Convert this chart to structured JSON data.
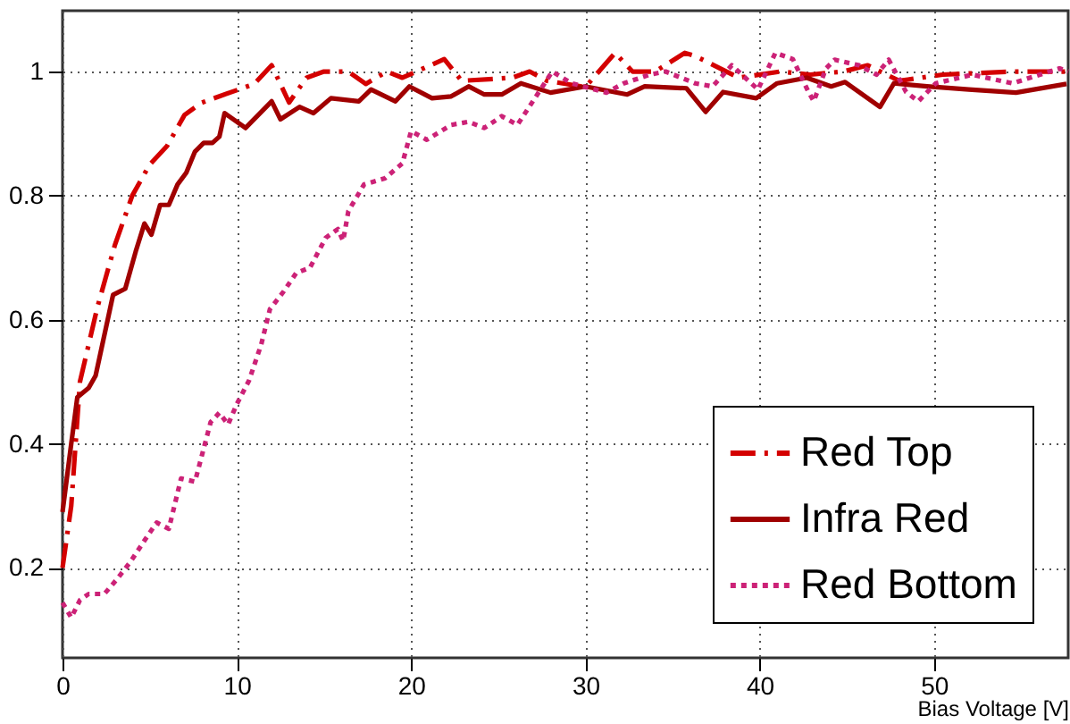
{
  "chart_data": {
    "type": "line",
    "xlabel": "Bias Voltage [V]",
    "xlim": [
      0,
      57.7
    ],
    "ylim": [
      0.055,
      1.098
    ],
    "xticks": [
      0,
      10,
      20,
      30,
      40,
      50
    ],
    "yticks": [
      0.2,
      0.4,
      0.6,
      0.8,
      1
    ],
    "grid": true,
    "legend": "bottom right",
    "series": [
      {
        "name": "Red Top",
        "color": "#d40000",
        "line_style": "dashed",
        "x": [
          0,
          0.5,
          1,
          2,
          3,
          4,
          5,
          6,
          7,
          8,
          9,
          10,
          11,
          12,
          13,
          14,
          15,
          16.4,
          17.4,
          18.6,
          19.5,
          21.9,
          22.9,
          25.8,
          26.8,
          27.8,
          30,
          31.7,
          32.7,
          34,
          35.7,
          36.3,
          38.8,
          41.2,
          42.9,
          44.8,
          46.2,
          48,
          50.5,
          54.5,
          57.7
        ],
        "values": [
          0.2,
          0.3,
          0.5,
          0.62,
          0.72,
          0.8,
          0.85,
          0.88,
          0.93,
          0.95,
          0.96,
          0.97,
          0.98,
          1.01,
          0.95,
          0.99,
          1.0,
          1.0,
          0.98,
          1.0,
          0.99,
          1.02,
          0.985,
          0.99,
          1.0,
          0.985,
          0.975,
          1.03,
          1.0,
          1.0,
          1.03,
          1.025,
          0.99,
          1.0,
          0.995,
          1.0,
          1.01,
          0.985,
          0.995,
          1.0,
          1.0
        ]
      },
      {
        "name": "Infra Red",
        "color": "#a00000",
        "line_style": "solid",
        "x": [
          0,
          0.5,
          0.85,
          1.5,
          1.9,
          2.9,
          3.6,
          4.2,
          4.7,
          5.1,
          5.6,
          6.1,
          6.6,
          7.1,
          7.6,
          8.1,
          8.6,
          9.0,
          9.3,
          10.5,
          12.0,
          12.5,
          13.6,
          14.4,
          15.4,
          17.0,
          17.7,
          19.1,
          19.9,
          21.2,
          22.3,
          23.3,
          24.2,
          25.2,
          26.3,
          28,
          30,
          32.4,
          33.4,
          35.8,
          36.9,
          37.9,
          39.8,
          41,
          42.7,
          44.1,
          44.9,
          46.9,
          47.7,
          49.6,
          52,
          54.7,
          57.6
        ],
        "values": [
          0.29,
          0.4,
          0.475,
          0.49,
          0.51,
          0.64,
          0.65,
          0.71,
          0.755,
          0.737,
          0.785,
          0.785,
          0.818,
          0.837,
          0.871,
          0.885,
          0.885,
          0.895,
          0.933,
          0.909,
          0.952,
          0.923,
          0.943,
          0.933,
          0.957,
          0.952,
          0.971,
          0.952,
          0.976,
          0.957,
          0.96,
          0.976,
          0.963,
          0.963,
          0.981,
          0.966,
          0.976,
          0.963,
          0.976,
          0.973,
          0.935,
          0.967,
          0.957,
          0.981,
          0.99,
          0.976,
          0.983,
          0.943,
          0.981,
          0.976,
          0.971,
          0.966,
          0.98
        ]
      },
      {
        "name": "Red Bottom",
        "color": "#cc2277",
        "line_style": "dotted",
        "x": [
          0,
          0.5,
          1,
          1.5,
          2.4,
          3.1,
          3.9,
          4.7,
          5.4,
          6.1,
          6.8,
          7.6,
          8.5,
          9.0,
          9.5,
          10,
          10.7,
          11.4,
          11.9,
          12.7,
          13.4,
          14.2,
          15.1,
          15.8,
          16.1,
          16.4,
          17.3,
          18.5,
          19.5,
          20,
          20.9,
          22.3,
          23.3,
          24.2,
          25.2,
          26.1,
          27.1,
          28.1,
          29.2,
          31.2,
          32.2,
          33.7,
          34.6,
          36.3,
          37.3,
          38.4,
          39.9,
          40.9,
          41.9,
          42.8,
          43.1,
          43.8,
          44.3,
          45.7,
          46.7,
          47.4,
          48.4,
          49.1,
          50.1,
          52.2,
          54.5,
          57.2,
          57.7
        ],
        "values": [
          0.144,
          0.12,
          0.148,
          0.158,
          0.158,
          0.181,
          0.21,
          0.244,
          0.273,
          0.263,
          0.344,
          0.339,
          0.435,
          0.45,
          0.431,
          0.464,
          0.502,
          0.56,
          0.617,
          0.646,
          0.675,
          0.684,
          0.732,
          0.746,
          0.727,
          0.775,
          0.818,
          0.828,
          0.852,
          0.904,
          0.89,
          0.914,
          0.919,
          0.909,
          0.928,
          0.914,
          0.957,
          1.0,
          0.981,
          0.966,
          0.981,
          0.995,
          1.0,
          0.981,
          0.976,
          1.01,
          0.971,
          1.03,
          1.02,
          0.967,
          0.952,
          1.005,
          1.019,
          1.01,
          0.995,
          1.019,
          0.967,
          0.952,
          0.981,
          0.995,
          0.981,
          1.005,
          1.0
        ]
      }
    ]
  }
}
